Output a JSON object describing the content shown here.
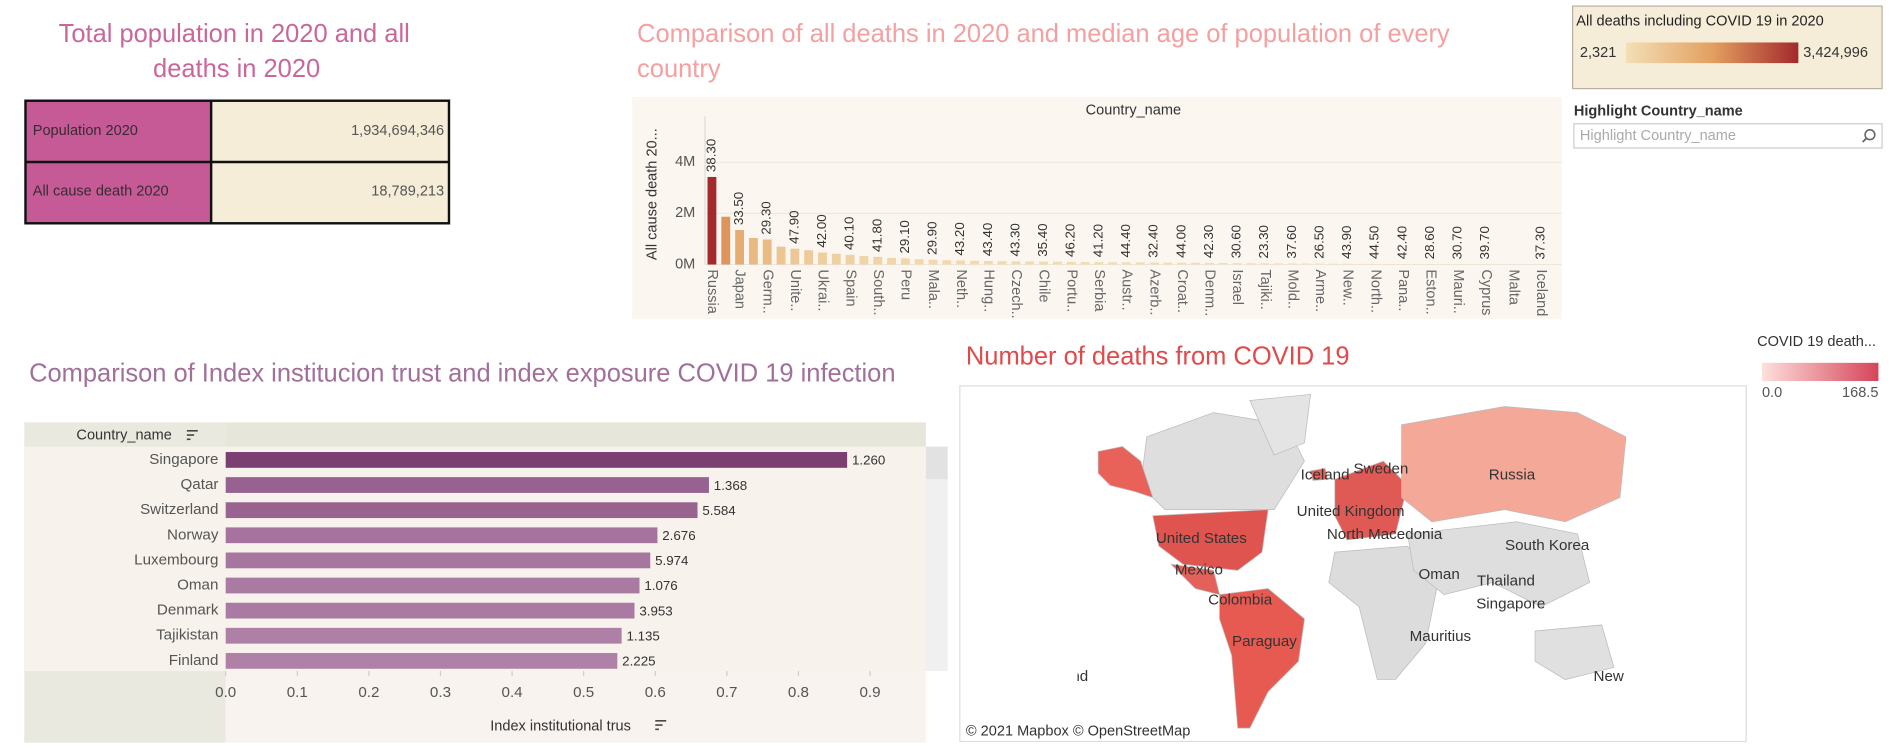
{
  "kpi": {
    "title": "Total population in 2020 and all deaths in 2020",
    "rows": [
      [
        "Population 2020",
        "1,934,694,346"
      ],
      [
        "All cause death 2020",
        "18,789,213"
      ]
    ]
  },
  "color_legend": {
    "title": "All deaths including COVID 19 in 2020",
    "min": {
      "value": 2321,
      "label": "2,321"
    },
    "max": {
      "value": 3424996,
      "label": "3,424,996"
    },
    "colors": [
      "#f3dfb6",
      "#e3a060",
      "#a3292c"
    ]
  },
  "highlight": {
    "label": "Highlight Country_name",
    "placeholder": "Highlight Country_name"
  },
  "map": {
    "title": "Number of deaths from COVID 19",
    "legend": {
      "title": "COVID 19 death...",
      "min_label": "0.0",
      "max_label": "168.5"
    },
    "labels": [
      "Russia",
      "Iceland",
      "Sweden",
      "United Kingdom",
      "North Macedonia",
      "United States",
      "South Korea",
      "Mexico",
      "Oman",
      "Thailand",
      "Colombia",
      "Singapore",
      "Paraguay",
      "Mauritius",
      "New Zealand",
      "New Zealand"
    ],
    "attribution": "© 2021 Mapbox  © OpenStreetMap"
  },
  "chart_data": [
    {
      "type": "bar",
      "title": "Comparison of all  deaths in 2020 and median age of population of every country",
      "x_label": "Country_name",
      "y_label": "All cause death 20...",
      "categories": [
        "Russia",
        null,
        "Japan",
        null,
        "Germ..",
        null,
        "Unite..",
        null,
        "Ukrai..",
        null,
        "Spain",
        null,
        "South..",
        null,
        "Peru",
        null,
        "Mala..",
        null,
        "Neth..",
        null,
        "Hung..",
        null,
        "Czech..",
        null,
        "Chile",
        null,
        "Portu..",
        null,
        "Serbia",
        null,
        "Austr..",
        null,
        "Azerb..",
        null,
        "Croat..",
        null,
        "Denm..",
        null,
        "Israel",
        null,
        "Tajiki..",
        null,
        "Mold..",
        null,
        "Arme..",
        null,
        "New..",
        null,
        "North..",
        null,
        "Pana..",
        null,
        "Eston..",
        null,
        "Mauri..",
        null,
        "Cyprus",
        null,
        "Malta",
        null,
        "Iceland",
        null
      ],
      "values": [
        3424996,
        1870000,
        1350000,
        1040000,
        980000,
        700000,
        620000,
        560000,
        470000,
        420000,
        380000,
        330000,
        300000,
        260000,
        240000,
        210000,
        190000,
        170000,
        160000,
        150000,
        140000,
        130000,
        125000,
        120000,
        115000,
        110000,
        105000,
        100000,
        95000,
        90000,
        86000,
        82000,
        78000,
        74000,
        70000,
        66000,
        62000,
        58000,
        55000,
        52000,
        49000,
        46000,
        43000,
        40000,
        37000,
        34000,
        31000,
        28000,
        25000,
        22000,
        20000,
        18000,
        16000,
        14000,
        12000,
        10000,
        8000,
        6000,
        5000,
        4000,
        3000,
        2321
      ],
      "median_age_labels": [
        "38.30",
        null,
        "33.50",
        null,
        "29.30",
        null,
        "47.90",
        null,
        "42.00",
        null,
        "40.10",
        null,
        "41.80",
        null,
        "29.10",
        null,
        "29.90",
        null,
        "43.20",
        null,
        "43.40",
        null,
        "43.30",
        null,
        "35.40",
        null,
        "46.20",
        null,
        "41.20",
        null,
        "44.40",
        null,
        "32.40",
        null,
        "44.00",
        null,
        "42.30",
        null,
        "30.60",
        null,
        "23.30",
        null,
        "37.60",
        null,
        "26.50",
        null,
        "43.90",
        null,
        "44.50",
        null,
        "42.40",
        null,
        "28.60",
        null,
        "30.70",
        null,
        "39.70",
        null,
        null,
        null,
        "37.30",
        null
      ],
      "ylim": [
        0,
        5600000
      ],
      "yticks": [
        {
          "value": 0,
          "label": "0M"
        },
        {
          "value": 2000000,
          "label": "2M"
        },
        {
          "value": 4000000,
          "label": "4M"
        }
      ],
      "grid": true
    },
    {
      "type": "hbar",
      "title": "Comparison of Index institucion trust  and index exposure COVID 19 infection",
      "y_label": "Country_name",
      "x_label": "Index institutional trus",
      "categories": [
        "Singapore",
        "Qatar",
        "Switzerland",
        "Norway",
        "Luxembourg",
        "Oman",
        "Denmark",
        "Tajikistan",
        "Finland"
      ],
      "values": [
        0.868,
        0.675,
        0.659,
        0.603,
        0.593,
        0.578,
        0.571,
        0.553,
        0.547
      ],
      "exposure_labels": [
        "1.260",
        "1.368",
        "5.584",
        "2.676",
        "5.974",
        "1.076",
        "3.953",
        "1.135",
        "2.225"
      ],
      "colors": [
        "#7b3f72",
        "#97628f",
        "#98638f",
        "#a5739d",
        "#a7769f",
        "#a97aa2",
        "#aa7ba2",
        "#ae80a6",
        "#af81a7"
      ],
      "xlim": [
        0,
        0.978
      ],
      "xticks": [
        {
          "value": 0,
          "label": "0.0"
        },
        0.1,
        0.2,
        0.3,
        0.4,
        0.5,
        0.6,
        0.7,
        0.8,
        0.9
      ]
    }
  ]
}
